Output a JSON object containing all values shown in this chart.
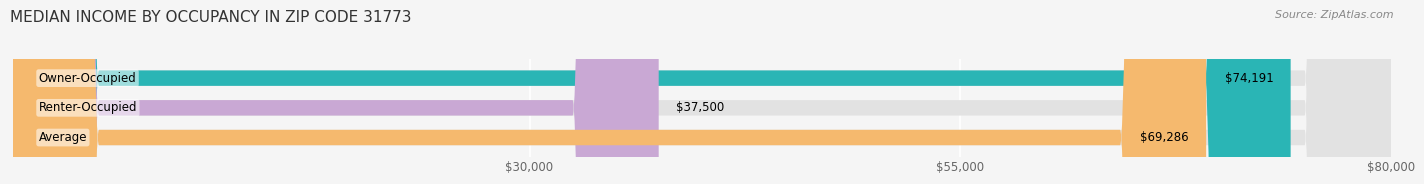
{
  "title": "MEDIAN INCOME BY OCCUPANCY IN ZIP CODE 31773",
  "source": "Source: ZipAtlas.com",
  "categories": [
    "Owner-Occupied",
    "Renter-Occupied",
    "Average"
  ],
  "values": [
    74191,
    37500,
    69286
  ],
  "bar_colors": [
    "#2ab5b5",
    "#c9a8d4",
    "#f5b96e"
  ],
  "value_labels": [
    "$74,191",
    "$37,500",
    "$69,286"
  ],
  "xlim": [
    0,
    80000
  ],
  "xticks": [
    30000,
    55000,
    80000
  ],
  "xtick_labels": [
    "$30,000",
    "$55,000",
    "$80,000"
  ],
  "title_fontsize": 11,
  "label_fontsize": 8.5,
  "source_fontsize": 8,
  "bar_height": 0.52,
  "background_color": "#f5f5f5",
  "bar_bg_color": "#e2e2e2"
}
